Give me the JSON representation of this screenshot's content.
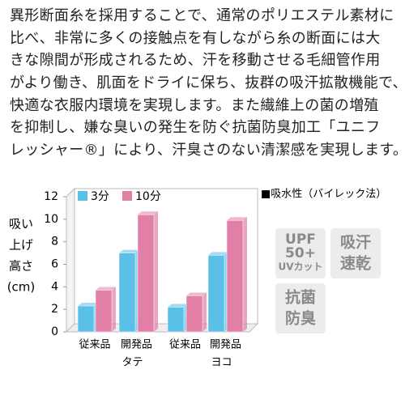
{
  "description": {
    "lines": [
      "異形断面糸を採用することで、通常のポリエステル素材に",
      "比べ、非常に多くの接触点を有しながら糸の断面には大",
      "きな隙間が形成されるため、汗を移動させる毛細管作用",
      "がより働き、肌面をドライに保ち、抜群の吸汗拡散機能で、",
      "快適な衣服内環境を実現します。また繊維上の菌の増殖",
      "を抑制し、嫌な臭いの発生を防ぐ抗菌防臭加工「ユニフ",
      "レッシャー®」により、汗臭さのない清潔感を実現します。"
    ]
  },
  "chart_data": {
    "type": "bar",
    "title": "■吸水性（バイレック法）",
    "y_label": [
      "吸い",
      "上げ",
      "高さ",
      "(cm)"
    ],
    "categories": [
      "従来品",
      "開発品",
      "従来品",
      "開発品"
    ],
    "category_groups": [
      "タテ",
      "ヨコ"
    ],
    "series": [
      {
        "name": "3分",
        "color": "#5bc0e8",
        "values": [
          2.3,
          7.0,
          2.2,
          6.8
        ]
      },
      {
        "name": "10分",
        "color": "#e17fa6",
        "values": [
          3.7,
          10.4,
          3.2,
          9.9
        ]
      }
    ],
    "ylim": [
      0,
      12
    ],
    "yticks": [
      0,
      2,
      4,
      6,
      8,
      10,
      12
    ],
    "grid": false
  },
  "badges": [
    {
      "lines": [
        "UPF",
        "50+",
        "UVカット"
      ]
    },
    {
      "lines": [
        "吸汗",
        "速乾"
      ]
    },
    {
      "lines": [
        "抗菌",
        "防臭"
      ]
    }
  ]
}
